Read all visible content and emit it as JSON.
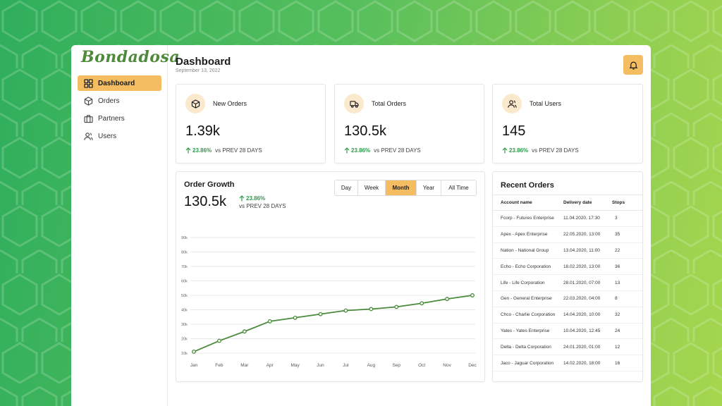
{
  "app": {
    "logo_text": "Bondadosa"
  },
  "sidebar": {
    "items": [
      {
        "label": "Dashboard",
        "icon": "grid-icon",
        "active": true
      },
      {
        "label": "Orders",
        "icon": "box-icon",
        "active": false
      },
      {
        "label": "Partners",
        "icon": "briefcase-icon",
        "active": false
      },
      {
        "label": "Users",
        "icon": "users-icon",
        "active": false
      }
    ]
  },
  "header": {
    "title": "Dashboard",
    "date": "September 13, 2022",
    "bell_icon": "bell-icon"
  },
  "stats": [
    {
      "label": "New Orders",
      "icon": "box-icon",
      "value": "1.39k",
      "change": "23.86%",
      "compare": "vs PREV 28 DAYS"
    },
    {
      "label": "Total Orders",
      "icon": "truck-icon",
      "value": "130.5k",
      "change": "23.86%",
      "compare": "vs PREV 28 DAYS"
    },
    {
      "label": "Total Users",
      "icon": "users-icon",
      "value": "145",
      "change": "23.86%",
      "compare": "vs PREV 28 DAYS"
    }
  ],
  "order_growth": {
    "title": "Order Growth",
    "value": "130.5k",
    "change": "23.86%",
    "compare": "vs PREV 28 DAYS",
    "periods": [
      "Day",
      "Week",
      "Month",
      "Year",
      "All Time"
    ],
    "active_period": "Month"
  },
  "chart_data": {
    "type": "line",
    "title": "",
    "xlabel": "",
    "ylabel": "",
    "categories": [
      "Jan",
      "Feb",
      "Mar",
      "Apr",
      "May",
      "Jun",
      "Jul",
      "Aug",
      "Sep",
      "Oct",
      "Nov",
      "Dec"
    ],
    "y_ticks": [
      "10k",
      "20k",
      "30k",
      "40k",
      "50k",
      "60k",
      "70k",
      "80k",
      "90k"
    ],
    "series": [
      {
        "values": [
          11000,
          18500,
          25000,
          32000,
          34500,
          37000,
          39500,
          40500,
          42000,
          44500,
          47500,
          50000
        ]
      }
    ],
    "ylim": [
      10000,
      90000
    ],
    "grid": true,
    "line_color": "#4a8a3c"
  },
  "recent_orders": {
    "title": "Recent Orders",
    "columns": [
      "Account name",
      "Delivery date",
      "Stops"
    ],
    "rows": [
      [
        "Fcorp - Futures Enterprise",
        "11.04.2020, 17:30",
        "3"
      ],
      [
        "Apex - Apex Enterprise",
        "22.05.2020, 13:00",
        "35"
      ],
      [
        "Nation - National Group",
        "13.04.2020, 11:00",
        "22"
      ],
      [
        "Echo - Echo Corporation",
        "18.02.2020, 13:00",
        "36"
      ],
      [
        "Life - Life Corporation",
        "28.01.2020, 07:00",
        "13"
      ],
      [
        "Gen - General Enterprise",
        "22.03.2020, 04:00",
        "8"
      ],
      [
        "Chco - Charlie Corporation",
        "14.04.2020, 10:00",
        "32"
      ],
      [
        "Yates - Yates Enterprise",
        "10.04.2020, 12:45",
        "24"
      ],
      [
        "Delta - Delta Corporation",
        "24.01.2020, 01:00",
        "12"
      ],
      [
        "Jaco - Jaguar Corporation",
        "14.02.2020, 18:00",
        "16"
      ]
    ]
  },
  "colors": {
    "accent": "#f4bd62",
    "positive": "#2f9a4b",
    "brand_green": "#4f8a3a"
  }
}
